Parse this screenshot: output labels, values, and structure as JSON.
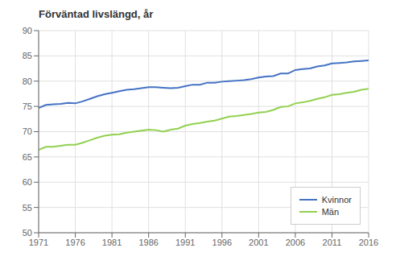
{
  "chart_data": {
    "type": "line",
    "title": "Förväntad livslängd, år",
    "x": [
      1971,
      1972,
      1973,
      1974,
      1975,
      1976,
      1977,
      1978,
      1979,
      1980,
      1981,
      1982,
      1983,
      1984,
      1985,
      1986,
      1987,
      1988,
      1989,
      1990,
      1991,
      1992,
      1993,
      1994,
      1995,
      1996,
      1997,
      1998,
      1999,
      2000,
      2001,
      2002,
      2003,
      2004,
      2005,
      2006,
      2007,
      2008,
      2009,
      2010,
      2011,
      2012,
      2013,
      2014,
      2015,
      2016
    ],
    "series": [
      {
        "name": "Kvinnor",
        "color": "#4472C4",
        "values": [
          74.7,
          75.3,
          75.4,
          75.5,
          75.7,
          75.6,
          76.0,
          76.5,
          77.0,
          77.4,
          77.7,
          78.0,
          78.3,
          78.4,
          78.6,
          78.8,
          78.8,
          78.7,
          78.6,
          78.7,
          79.0,
          79.3,
          79.3,
          79.7,
          79.7,
          79.9,
          80.0,
          80.1,
          80.2,
          80.4,
          80.7,
          80.9,
          81.0,
          81.5,
          81.5,
          82.2,
          82.4,
          82.5,
          82.9,
          83.1,
          83.5,
          83.6,
          83.7,
          83.9,
          84.0,
          84.1
        ]
      },
      {
        "name": "Män",
        "color": "#92D050",
        "values": [
          66.4,
          67.0,
          67.0,
          67.2,
          67.4,
          67.4,
          67.8,
          68.3,
          68.8,
          69.2,
          69.4,
          69.5,
          69.8,
          70.0,
          70.2,
          70.4,
          70.3,
          70.0,
          70.4,
          70.6,
          71.2,
          71.5,
          71.7,
          72.0,
          72.2,
          72.6,
          73.0,
          73.1,
          73.3,
          73.5,
          73.8,
          73.9,
          74.3,
          74.9,
          75.0,
          75.6,
          75.8,
          76.1,
          76.5,
          76.8,
          77.3,
          77.4,
          77.7,
          77.9,
          78.3,
          78.5
        ]
      }
    ],
    "xlim": [
      1971,
      2016
    ],
    "xticks": [
      1971,
      1976,
      1981,
      1986,
      1991,
      1996,
      2001,
      2006,
      2011,
      2016
    ],
    "ylim": [
      50,
      90
    ],
    "yticks": [
      50,
      55,
      60,
      65,
      70,
      75,
      80,
      85,
      90
    ],
    "grid": true,
    "legend": "lower right"
  }
}
